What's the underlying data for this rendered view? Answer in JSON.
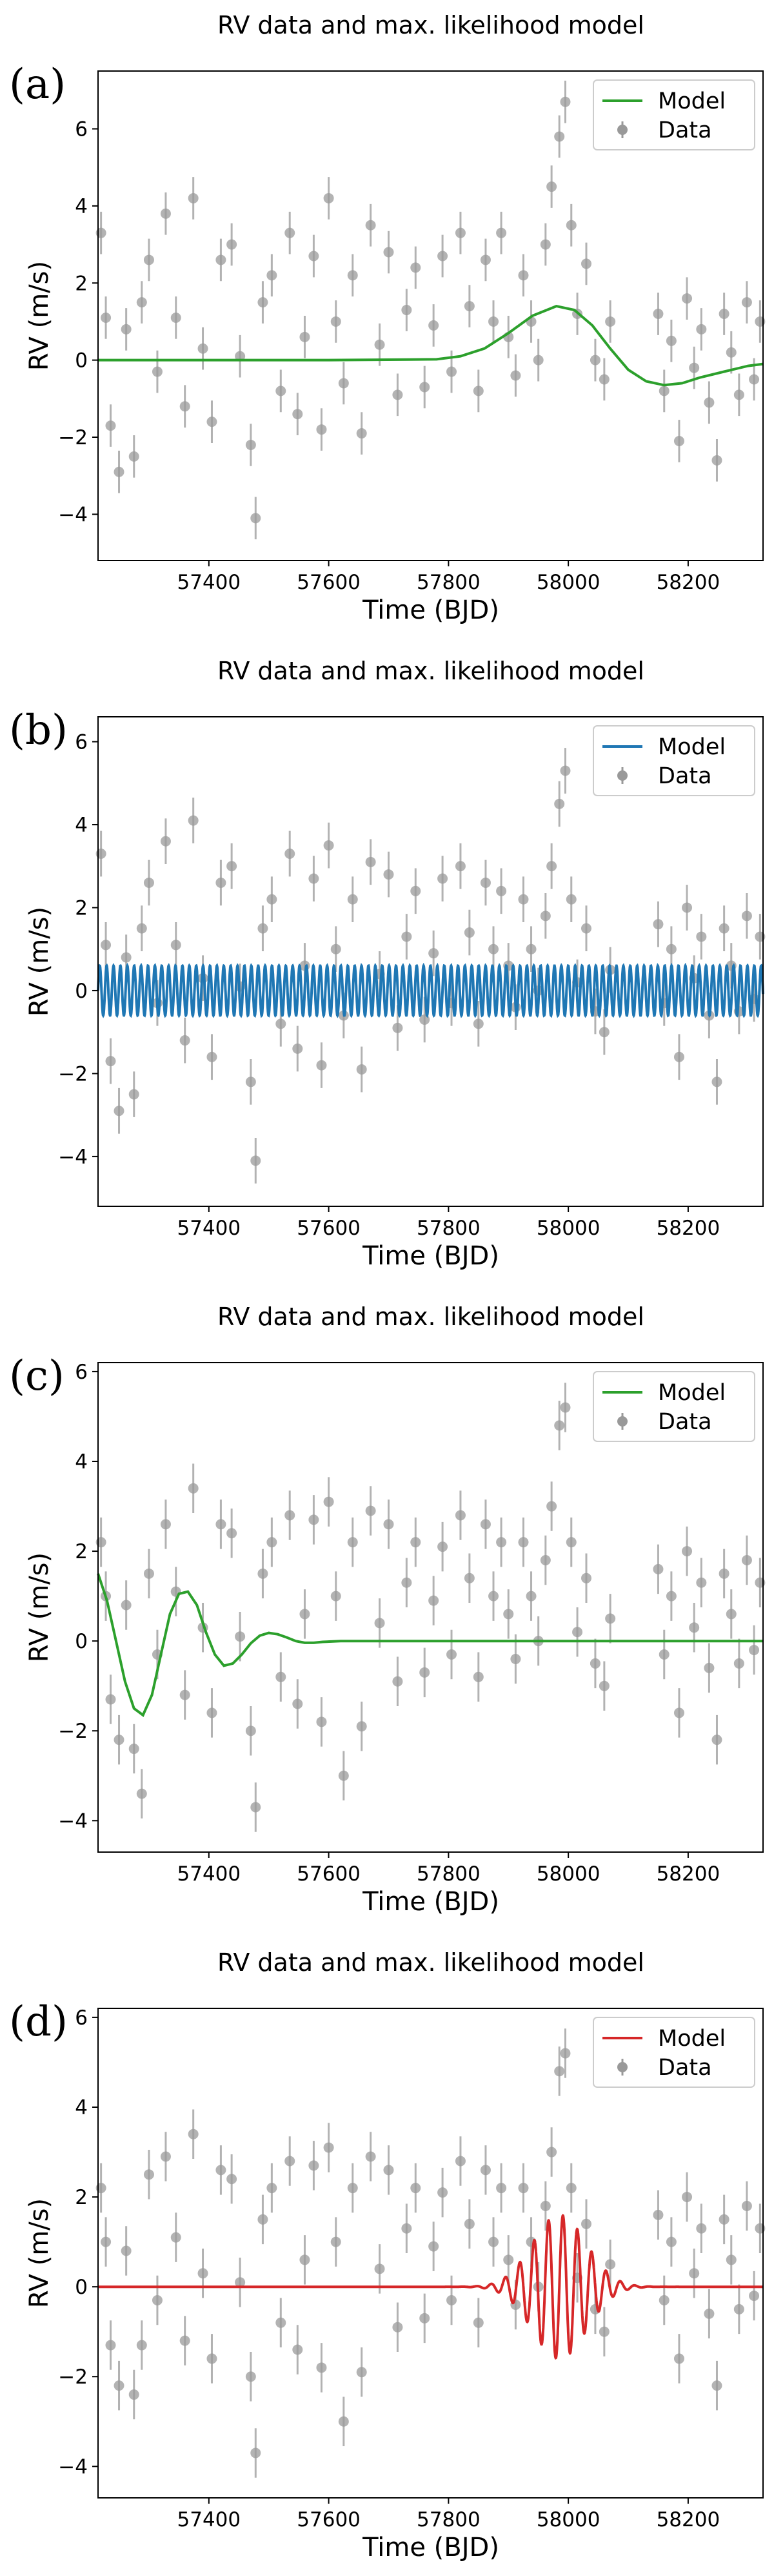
{
  "chart_data": [
    {
      "panel_label": "(a)",
      "type": "scatter",
      "title": "RV data and max. likelihood model",
      "xlabel": "Time (BJD)",
      "ylabel": "RV (m/s)",
      "xlim": [
        57215,
        58325
      ],
      "ylim": [
        -5.2,
        7.5
      ],
      "xticks": [
        57400,
        57600,
        57800,
        58000,
        58200
      ],
      "yticks": [
        -4,
        -2,
        0,
        2,
        4,
        6
      ],
      "legend": {
        "position": "top-right",
        "entries": [
          "Model",
          "Data"
        ]
      },
      "grid": false,
      "series": [
        {
          "name": "Model",
          "kind": "line",
          "color": "#2ca02c",
          "x": [
            57215,
            57400,
            57600,
            57780,
            57820,
            57860,
            57900,
            57940,
            57980,
            58010,
            58040,
            58070,
            58100,
            58130,
            58160,
            58190,
            58220,
            58260,
            58300,
            58325
          ],
          "y": [
            0,
            0,
            0,
            0.02,
            0.1,
            0.3,
            0.7,
            1.15,
            1.4,
            1.3,
            0.9,
            0.3,
            -0.25,
            -0.55,
            -0.65,
            -0.6,
            -0.45,
            -0.3,
            -0.15,
            -0.1
          ]
        },
        {
          "name": "Data",
          "kind": "errorbar",
          "color": "#999999",
          "x": [
            57220,
            57228,
            57236,
            57250,
            57262,
            57275,
            57288,
            57300,
            57314,
            57328,
            57345,
            57360,
            57374,
            57390,
            57405,
            57420,
            57438,
            57452,
            57470,
            57478,
            57490,
            57505,
            57520,
            57535,
            57548,
            57560,
            57575,
            57588,
            57600,
            57612,
            57625,
            57640,
            57655,
            57670,
            57685,
            57700,
            57715,
            57730,
            57745,
            57760,
            57775,
            57790,
            57805,
            57820,
            57835,
            57850,
            57862,
            57875,
            57888,
            57900,
            57912,
            57925,
            57938,
            57950,
            57962,
            57972,
            57985,
            57995,
            58005,
            58015,
            58030,
            58045,
            58060,
            58070,
            58150,
            58160,
            58172,
            58185,
            58198,
            58210,
            58222,
            58235,
            58248,
            58260,
            58272,
            58285,
            58298,
            58310,
            58320
          ],
          "y": [
            3.3,
            1.1,
            -1.7,
            -2.9,
            0.8,
            -2.5,
            1.5,
            2.6,
            -0.3,
            3.8,
            1.1,
            -1.2,
            4.2,
            0.3,
            -1.6,
            2.6,
            3.0,
            0.1,
            -2.2,
            -4.1,
            1.5,
            2.2,
            -0.8,
            3.3,
            -1.4,
            0.6,
            2.7,
            -1.8,
            4.2,
            1.0,
            -0.6,
            2.2,
            -1.9,
            3.5,
            0.4,
            2.8,
            -0.9,
            1.3,
            2.4,
            -0.7,
            0.9,
            2.7,
            -0.3,
            3.3,
            1.4,
            -0.8,
            2.6,
            1.0,
            3.3,
            0.6,
            -0.4,
            2.2,
            1.0,
            0.0,
            3.0,
            4.5,
            5.8,
            6.7,
            3.5,
            1.2,
            2.5,
            0.0,
            -0.5,
            1.0,
            1.2,
            -0.8,
            0.5,
            -2.1,
            1.6,
            -0.2,
            0.8,
            -1.1,
            -2.6,
            1.2,
            0.2,
            -0.9,
            1.5,
            -0.5,
            1.0
          ],
          "yerr": 0.55
        }
      ]
    },
    {
      "panel_label": "(b)",
      "type": "scatter",
      "title": "RV data and max. likelihood model",
      "xlabel": "Time (BJD)",
      "ylabel": "RV (m/s)",
      "xlim": [
        57215,
        58325
      ],
      "ylim": [
        -5.2,
        6.6
      ],
      "xticks": [
        57400,
        57600,
        57800,
        58000,
        58200
      ],
      "yticks": [
        -4,
        -2,
        0,
        2,
        4,
        6
      ],
      "legend": {
        "position": "top-right",
        "entries": [
          "Model",
          "Data"
        ]
      },
      "grid": false,
      "series": [
        {
          "name": "Model",
          "kind": "sinusoid",
          "color": "#1f77b4",
          "amplitude": 0.6,
          "period": 11.5,
          "x_range": [
            57215,
            58325
          ]
        },
        {
          "name": "Data",
          "kind": "errorbar",
          "color": "#999999",
          "x": [
            57220,
            57228,
            57236,
            57250,
            57262,
            57275,
            57288,
            57300,
            57314,
            57328,
            57345,
            57360,
            57374,
            57390,
            57405,
            57420,
            57438,
            57452,
            57470,
            57478,
            57490,
            57505,
            57520,
            57535,
            57548,
            57560,
            57575,
            57588,
            57600,
            57612,
            57625,
            57640,
            57655,
            57670,
            57685,
            57700,
            57715,
            57730,
            57745,
            57760,
            57775,
            57790,
            57805,
            57820,
            57835,
            57850,
            57862,
            57875,
            57888,
            57900,
            57912,
            57925,
            57938,
            57950,
            57962,
            57972,
            57985,
            57995,
            58005,
            58015,
            58030,
            58045,
            58060,
            58070,
            58150,
            58160,
            58172,
            58185,
            58198,
            58210,
            58222,
            58235,
            58248,
            58260,
            58272,
            58285,
            58298,
            58310,
            58320
          ],
          "y": [
            3.3,
            1.1,
            -1.7,
            -2.9,
            0.8,
            -2.5,
            1.5,
            2.6,
            -0.3,
            3.6,
            1.1,
            -1.2,
            4.1,
            0.3,
            -1.6,
            2.6,
            3.0,
            0.1,
            -2.2,
            -4.1,
            1.5,
            2.2,
            -0.8,
            3.3,
            -1.4,
            0.6,
            2.7,
            -1.8,
            3.5,
            1.0,
            -0.6,
            2.2,
            -1.9,
            3.1,
            0.4,
            2.8,
            -0.9,
            1.3,
            2.4,
            -0.7,
            0.9,
            2.7,
            -0.3,
            3.0,
            1.4,
            -0.8,
            2.6,
            1.0,
            2.4,
            0.6,
            -0.4,
            2.2,
            1.0,
            0.0,
            1.8,
            3.0,
            4.5,
            5.3,
            2.2,
            0.2,
            1.5,
            -0.5,
            -1.0,
            0.5,
            1.6,
            -0.3,
            1.0,
            -1.6,
            2.0,
            0.3,
            1.3,
            -0.6,
            -2.2,
            1.5,
            0.6,
            -0.5,
            1.8,
            -0.2,
            1.3
          ],
          "yerr": 0.55
        }
      ]
    },
    {
      "panel_label": "(c)",
      "type": "scatter",
      "title": "RV data and max. likelihood model",
      "xlabel": "Time (BJD)",
      "ylabel": "RV (m/s)",
      "xlim": [
        57215,
        58325
      ],
      "ylim": [
        -4.7,
        6.2
      ],
      "xticks": [
        57400,
        57600,
        57800,
        58000,
        58200
      ],
      "yticks": [
        -4,
        -2,
        0,
        2,
        4,
        6
      ],
      "legend": {
        "position": "top-right",
        "entries": [
          "Model",
          "Data"
        ]
      },
      "grid": false,
      "series": [
        {
          "name": "Model",
          "kind": "line",
          "color": "#2ca02c",
          "x": [
            57215,
            57230,
            57245,
            57260,
            57275,
            57290,
            57305,
            57320,
            57335,
            57350,
            57365,
            57380,
            57395,
            57410,
            57425,
            57440,
            57455,
            57470,
            57485,
            57500,
            57515,
            57530,
            57545,
            57560,
            57575,
            57590,
            57620,
            57700,
            57900,
            58100,
            58325
          ],
          "y": [
            1.5,
            0.9,
            0.0,
            -0.9,
            -1.5,
            -1.65,
            -1.2,
            -0.3,
            0.6,
            1.05,
            1.1,
            0.8,
            0.2,
            -0.3,
            -0.55,
            -0.5,
            -0.3,
            -0.05,
            0.12,
            0.18,
            0.15,
            0.08,
            0.0,
            -0.04,
            -0.04,
            -0.02,
            0.0,
            0.0,
            0.0,
            0.0,
            0.0
          ]
        },
        {
          "name": "Data",
          "kind": "errorbar",
          "color": "#999999",
          "x": [
            57220,
            57228,
            57236,
            57250,
            57262,
            57275,
            57288,
            57300,
            57314,
            57328,
            57345,
            57360,
            57374,
            57390,
            57405,
            57420,
            57438,
            57452,
            57470,
            57478,
            57490,
            57505,
            57520,
            57535,
            57548,
            57560,
            57575,
            57588,
            57600,
            57612,
            57625,
            57640,
            57655,
            57670,
            57685,
            57700,
            57715,
            57730,
            57745,
            57760,
            57775,
            57790,
            57805,
            57820,
            57835,
            57850,
            57862,
            57875,
            57888,
            57900,
            57912,
            57925,
            57938,
            57950,
            57962,
            57972,
            57985,
            57995,
            58005,
            58015,
            58030,
            58045,
            58060,
            58070,
            58150,
            58160,
            58172,
            58185,
            58198,
            58210,
            58222,
            58235,
            58248,
            58260,
            58272,
            58285,
            58298,
            58310,
            58320
          ],
          "y": [
            2.2,
            1.0,
            -1.3,
            -2.2,
            0.8,
            -2.4,
            -3.4,
            1.5,
            -0.3,
            2.6,
            1.1,
            -1.2,
            3.4,
            0.3,
            -1.6,
            2.6,
            2.4,
            0.1,
            -2.0,
            -3.7,
            1.5,
            2.2,
            -0.8,
            2.8,
            -1.4,
            0.6,
            2.7,
            -1.8,
            3.1,
            1.0,
            -3.0,
            2.2,
            -1.9,
            2.9,
            0.4,
            2.6,
            -0.9,
            1.3,
            2.2,
            -0.7,
            0.9,
            2.1,
            -0.3,
            2.8,
            1.4,
            -0.8,
            2.6,
            1.0,
            2.2,
            0.6,
            -0.4,
            2.2,
            1.0,
            0.0,
            1.8,
            3.0,
            4.8,
            5.2,
            2.2,
            0.2,
            1.4,
            -0.5,
            -1.0,
            0.5,
            1.6,
            -0.3,
            1.0,
            -1.6,
            2.0,
            0.3,
            1.3,
            -0.6,
            -2.2,
            1.5,
            0.6,
            -0.5,
            1.8,
            -0.2,
            1.3
          ],
          "yerr": 0.55
        }
      ]
    },
    {
      "panel_label": "(d)",
      "type": "scatter",
      "title": "RV data and max. likelihood model",
      "xlabel": "Time (BJD)",
      "ylabel": "RV (m/s)",
      "xlim": [
        57215,
        58325
      ],
      "ylim": [
        -4.7,
        6.2
      ],
      "xticks": [
        57400,
        57600,
        57800,
        58000,
        58200
      ],
      "yticks": [
        -4,
        -2,
        0,
        2,
        4,
        6
      ],
      "legend": {
        "position": "top-right",
        "entries": [
          "Model",
          "Data"
        ]
      },
      "grid": false,
      "series": [
        {
          "name": "Model",
          "kind": "wavepacket",
          "color": "#d62728",
          "center": 57985,
          "width": 45,
          "amplitude": 1.6,
          "period": 24,
          "x_range": [
            57215,
            58325
          ]
        },
        {
          "name": "Data",
          "kind": "errorbar",
          "color": "#999999",
          "x": [
            57220,
            57228,
            57236,
            57250,
            57262,
            57275,
            57288,
            57300,
            57314,
            57328,
            57345,
            57360,
            57374,
            57390,
            57405,
            57420,
            57438,
            57452,
            57470,
            57478,
            57490,
            57505,
            57520,
            57535,
            57548,
            57560,
            57575,
            57588,
            57600,
            57612,
            57625,
            57640,
            57655,
            57670,
            57685,
            57700,
            57715,
            57730,
            57745,
            57760,
            57775,
            57790,
            57805,
            57820,
            57835,
            57850,
            57862,
            57875,
            57888,
            57900,
            57912,
            57925,
            57938,
            57950,
            57962,
            57972,
            57985,
            57995,
            58005,
            58015,
            58030,
            58045,
            58060,
            58070,
            58150,
            58160,
            58172,
            58185,
            58198,
            58210,
            58222,
            58235,
            58248,
            58260,
            58272,
            58285,
            58298,
            58310,
            58320
          ],
          "y": [
            2.2,
            1.0,
            -1.3,
            -2.2,
            0.8,
            -2.4,
            -1.3,
            2.5,
            -0.3,
            2.9,
            1.1,
            -1.2,
            3.4,
            0.3,
            -1.6,
            2.6,
            2.4,
            0.1,
            -2.0,
            -3.7,
            1.5,
            2.2,
            -0.8,
            2.8,
            -1.4,
            0.6,
            2.7,
            -1.8,
            3.1,
            1.0,
            -3.0,
            2.2,
            -1.9,
            2.9,
            0.4,
            2.6,
            -0.9,
            1.3,
            2.2,
            -0.7,
            0.9,
            2.1,
            -0.3,
            2.8,
            1.4,
            -0.8,
            2.6,
            1.0,
            2.2,
            0.6,
            -0.4,
            2.2,
            1.0,
            0.0,
            1.8,
            3.0,
            4.8,
            5.2,
            2.2,
            0.2,
            1.4,
            -0.5,
            -1.0,
            0.5,
            1.6,
            -0.3,
            1.0,
            -1.6,
            2.0,
            0.3,
            1.3,
            -0.6,
            -2.2,
            1.5,
            0.6,
            -0.5,
            1.8,
            -0.2,
            1.3
          ],
          "yerr": 0.55
        }
      ]
    }
  ]
}
